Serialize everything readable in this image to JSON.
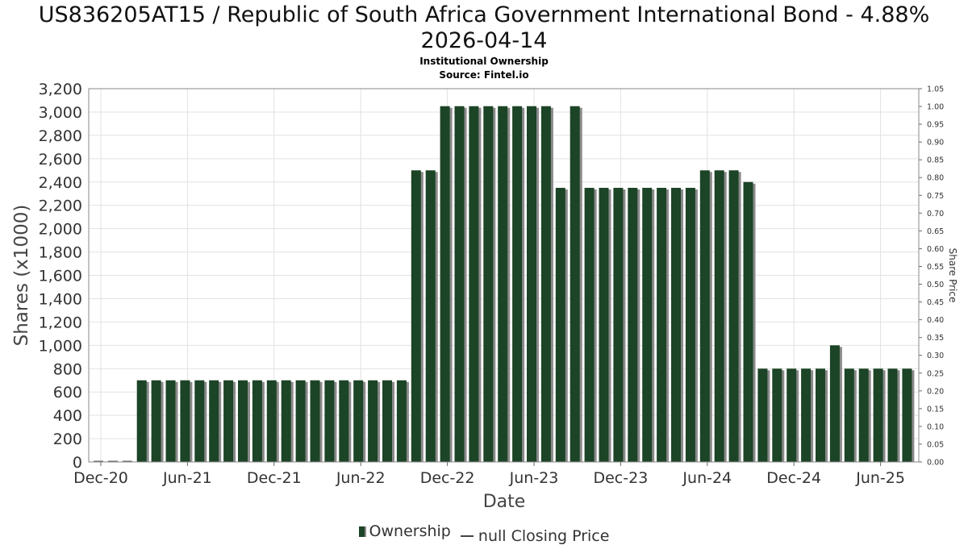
{
  "titles": {
    "line1": "US836205AT15 / Republic of South Africa Government International Bond - 4.88%",
    "line2": "2026-04-14",
    "subtitle1": "Institutional Ownership",
    "subtitle2": "Source: Fintel.io"
  },
  "legend": {
    "ownership": "Ownership",
    "price": "null Closing Price"
  },
  "colors": {
    "bar": "#1c4426",
    "shadow": "#8a8a8a",
    "grid": "#e2e2e2"
  },
  "chart_data": {
    "type": "bar",
    "title": "US836205AT15 / Republic of South Africa Government International Bond - 4.88% 2026-04-14",
    "xlabel": "Date",
    "ylabel": "Shares (x1000)",
    "y2label": "Share Price",
    "ylim": [
      0,
      3200
    ],
    "y2lim": [
      0,
      1.05
    ],
    "yticks": [
      "0",
      "200",
      "400",
      "600",
      "800",
      "1,000",
      "1,200",
      "1,400",
      "1,600",
      "1,800",
      "2,000",
      "2,200",
      "2,400",
      "2,600",
      "2,800",
      "3,000",
      "3,200"
    ],
    "y2ticks": [
      "0.00",
      "0.05",
      "0.10",
      "0.15",
      "0.20",
      "0.25",
      "0.30",
      "0.35",
      "0.40",
      "0.45",
      "0.50",
      "0.55",
      "0.60",
      "0.65",
      "0.70",
      "0.75",
      "0.80",
      "0.85",
      "0.90",
      "0.95",
      "1.00",
      "1.05"
    ],
    "xticks": [
      "Dec-20",
      "Jun-21",
      "Dec-21",
      "Jun-22",
      "Dec-22",
      "Jun-23",
      "Dec-23",
      "Jun-24",
      "Dec-24",
      "Jun-25"
    ],
    "series": [
      {
        "name": "Ownership",
        "values": [
          0,
          0,
          0,
          700,
          700,
          700,
          700,
          700,
          700,
          700,
          700,
          700,
          700,
          700,
          700,
          700,
          700,
          700,
          700,
          700,
          700,
          700,
          2500,
          2500,
          3050,
          3050,
          3050,
          3050,
          3050,
          3050,
          3050,
          3050,
          2350,
          3050,
          2350,
          2350,
          2350,
          2350,
          2350,
          2350,
          2350,
          2350,
          2500,
          2500,
          2500,
          2400,
          800,
          800,
          800,
          800,
          800,
          1000,
          800,
          800,
          800,
          800,
          800
        ]
      }
    ]
  }
}
